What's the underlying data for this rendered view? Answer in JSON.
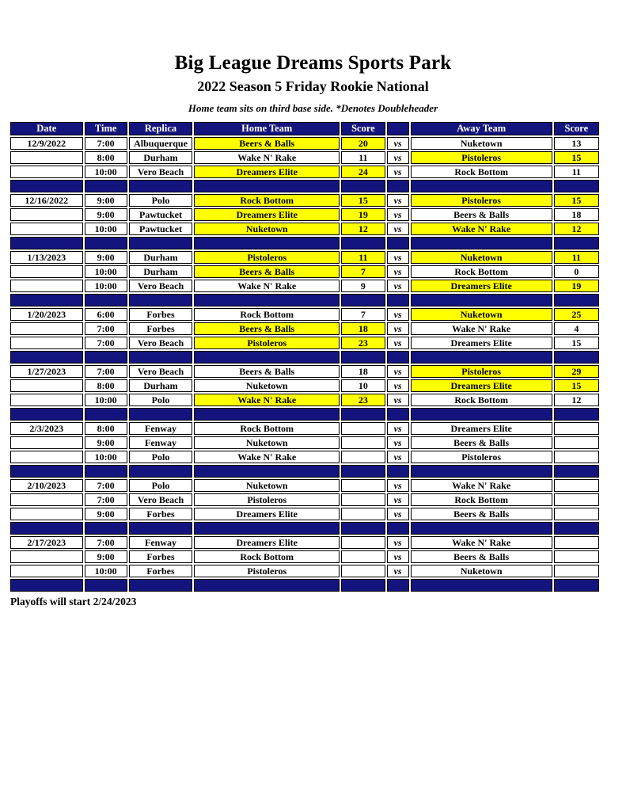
{
  "header": {
    "title": "Big League Dreams Sports Park",
    "subtitle": "2022 Season 5 Friday Rookie National",
    "note": "Home team sits on third base side.  *Denotes Doubleheader"
  },
  "colors": {
    "navy_band": "#14147e",
    "winner_highlight": "#ffff00",
    "header_text": "#ffffff",
    "body_text": "#000000"
  },
  "table": {
    "headers": [
      "Date",
      "Time",
      "Replica",
      "Home Team",
      "Score",
      "",
      "Away Team",
      "Score"
    ],
    "vs_label": "vs",
    "blocks": [
      {
        "date": "12/9/2022",
        "games": [
          {
            "time": "7:00",
            "replica": "Albuquerque",
            "home": "Beers & Balls",
            "home_score": "20",
            "home_hl": true,
            "away": "Nuketown",
            "away_score": "13",
            "away_hl": false
          },
          {
            "time": "8:00",
            "replica": "Durham",
            "home": "Wake N' Rake",
            "home_score": "11",
            "home_hl": false,
            "away": "Pistoleros",
            "away_score": "15",
            "away_hl": true
          },
          {
            "time": "10:00",
            "replica": "Vero Beach",
            "home": "Dreamers Elite",
            "home_score": "24",
            "home_hl": true,
            "away": "Rock Bottom",
            "away_score": "11",
            "away_hl": false
          }
        ]
      },
      {
        "date": "12/16/2022",
        "games": [
          {
            "time": "9:00",
            "replica": "Polo",
            "home": "Rock Bottom",
            "home_score": "15",
            "home_hl": true,
            "away": "Pistoleros",
            "away_score": "15",
            "away_hl": true
          },
          {
            "time": "9:00",
            "replica": "Pawtucket",
            "home": "Dreamers Elite",
            "home_score": "19",
            "home_hl": true,
            "away": "Beers & Balls",
            "away_score": "18",
            "away_hl": false
          },
          {
            "time": "10:00",
            "replica": "Pawtucket",
            "home": "Nuketown",
            "home_score": "12",
            "home_hl": true,
            "away": "Wake N' Rake",
            "away_score": "12",
            "away_hl": true
          }
        ]
      },
      {
        "date": "1/13/2023",
        "games": [
          {
            "time": "9:00",
            "replica": "Durham",
            "home": "Pistoleros",
            "home_score": "11",
            "home_hl": true,
            "away": "Nuketown",
            "away_score": "11",
            "away_hl": true
          },
          {
            "time": "10:00",
            "replica": "Durham",
            "home": "Beers & Balls",
            "home_score": "7",
            "home_hl": true,
            "away": "Rock Bottom",
            "away_score": "0",
            "away_hl": false
          },
          {
            "time": "10:00",
            "replica": "Vero Beach",
            "home": "Wake N' Rake",
            "home_score": "9",
            "home_hl": false,
            "away": "Dreamers Elite",
            "away_score": "19",
            "away_hl": true
          }
        ]
      },
      {
        "date": "1/20/2023",
        "games": [
          {
            "time": "6:00",
            "replica": "Forbes",
            "home": "Rock Bottom",
            "home_score": "7",
            "home_hl": false,
            "away": "Nuketown",
            "away_score": "25",
            "away_hl": true
          },
          {
            "time": "7:00",
            "replica": "Forbes",
            "home": "Beers & Balls",
            "home_score": "18",
            "home_hl": true,
            "away": "Wake N' Rake",
            "away_score": "4",
            "away_hl": false
          },
          {
            "time": "7:00",
            "replica": "Vero Beach",
            "home": "Pistoleros",
            "home_score": "23",
            "home_hl": true,
            "away": "Dreamers Elite",
            "away_score": "15",
            "away_hl": false
          }
        ]
      },
      {
        "date": "1/27/2023",
        "games": [
          {
            "time": "7:00",
            "replica": "Vero Beach",
            "home": "Beers & Balls",
            "home_score": "18",
            "home_hl": false,
            "away": "Pistoleros",
            "away_score": "29",
            "away_hl": true
          },
          {
            "time": "8:00",
            "replica": "Durham",
            "home": "Nuketown",
            "home_score": "10",
            "home_hl": false,
            "away": "Dreamers Elite",
            "away_score": "15",
            "away_hl": true
          },
          {
            "time": "10:00",
            "replica": "Polo",
            "home": "Wake N' Rake",
            "home_score": "23",
            "home_hl": true,
            "away": "Rock Bottom",
            "away_score": "12",
            "away_hl": false
          }
        ]
      },
      {
        "date": "2/3/2023",
        "games": [
          {
            "time": "8:00",
            "replica": "Fenway",
            "home": "Rock Bottom",
            "home_score": "",
            "home_hl": false,
            "away": "Dreamers Elite",
            "away_score": "",
            "away_hl": false
          },
          {
            "time": "9:00",
            "replica": "Fenway",
            "home": "Nuketown",
            "home_score": "",
            "home_hl": false,
            "away": "Beers & Balls",
            "away_score": "",
            "away_hl": false
          },
          {
            "time": "10:00",
            "replica": "Polo",
            "home": "Wake N' Rake",
            "home_score": "",
            "home_hl": false,
            "away": "Pistoleros",
            "away_score": "",
            "away_hl": false
          }
        ]
      },
      {
        "date": "2/10/2023",
        "games": [
          {
            "time": "7:00",
            "replica": "Polo",
            "home": "Nuketown",
            "home_score": "",
            "home_hl": false,
            "away": "Wake N' Rake",
            "away_score": "",
            "away_hl": false
          },
          {
            "time": "7:00",
            "replica": "Vero Beach",
            "home": "Pistoleros",
            "home_score": "",
            "home_hl": false,
            "away": "Rock Bottom",
            "away_score": "",
            "away_hl": false
          },
          {
            "time": "9:00",
            "replica": "Forbes",
            "home": "Dreamers Elite",
            "home_score": "",
            "home_hl": false,
            "away": "Beers & Balls",
            "away_score": "",
            "away_hl": false
          }
        ]
      },
      {
        "date": "2/17/2023",
        "games": [
          {
            "time": "7:00",
            "replica": "Fenway",
            "home": "Dreamers Elite",
            "home_score": "",
            "home_hl": false,
            "away": "Wake N' Rake",
            "away_score": "",
            "away_hl": false
          },
          {
            "time": "9:00",
            "replica": "Forbes",
            "home": "Rock Bottom",
            "home_score": "",
            "home_hl": false,
            "away": "Beers & Balls",
            "away_score": "",
            "away_hl": false
          },
          {
            "time": "10:00",
            "replica": "Forbes",
            "home": "Pistoleros",
            "home_score": "",
            "home_hl": false,
            "away": "Nuketown",
            "away_score": "",
            "away_hl": false
          }
        ]
      }
    ]
  },
  "footer": {
    "text": "Playoffs will start 2/24/2023"
  }
}
